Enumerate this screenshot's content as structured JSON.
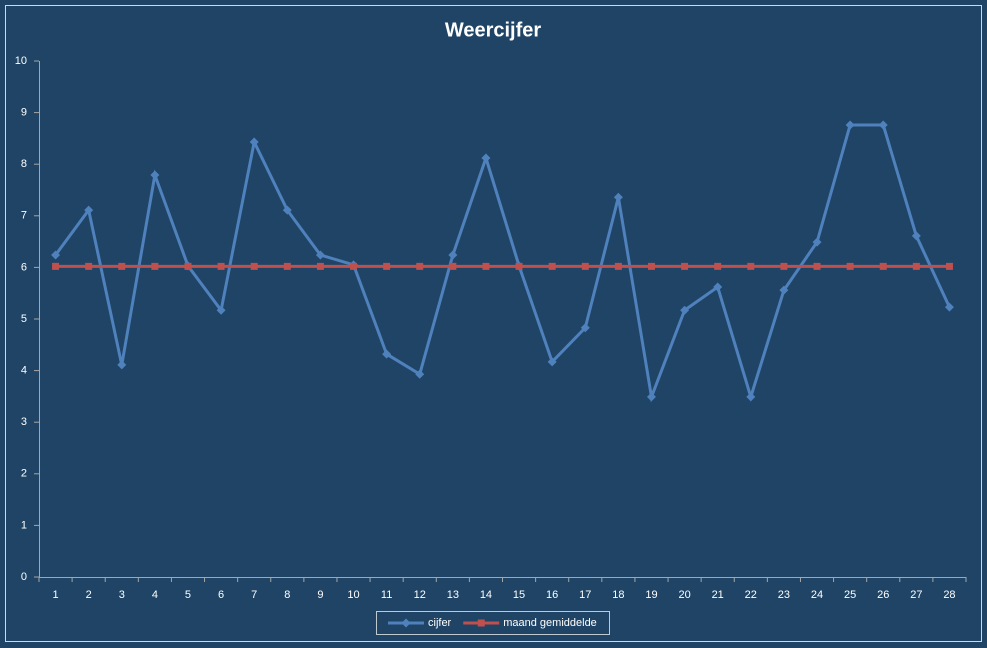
{
  "chart_data": {
    "type": "line",
    "title": "Weercijfer",
    "categories": [
      "1",
      "2",
      "3",
      "4",
      "5",
      "6",
      "7",
      "8",
      "9",
      "10",
      "11",
      "12",
      "13",
      "14",
      "15",
      "16",
      "17",
      "18",
      "19",
      "20",
      "21",
      "22",
      "23",
      "24",
      "25",
      "26",
      "27",
      "28"
    ],
    "series": [
      {
        "name": "cijfer",
        "color": "#4f81bd",
        "marker": "diamond",
        "values": [
          6.24,
          7.11,
          4.11,
          7.79,
          6.03,
          5.17,
          8.43,
          7.11,
          6.24,
          6.05,
          4.32,
          3.93,
          6.24,
          8.12,
          6.03,
          4.17,
          4.83,
          7.36,
          3.49,
          5.17,
          5.62,
          3.49,
          5.56,
          6.49,
          8.76,
          8.76,
          6.61,
          5.23
        ]
      },
      {
        "name": "maand gemiddelde",
        "color": "#c0504d",
        "marker": "square",
        "values": [
          6.02,
          6.02,
          6.02,
          6.02,
          6.02,
          6.02,
          6.02,
          6.02,
          6.02,
          6.02,
          6.02,
          6.02,
          6.02,
          6.02,
          6.02,
          6.02,
          6.02,
          6.02,
          6.02,
          6.02,
          6.02,
          6.02,
          6.02,
          6.02,
          6.02,
          6.02,
          6.02,
          6.02
        ]
      }
    ],
    "ylim": [
      0,
      10
    ],
    "yticks": [
      0,
      1,
      2,
      3,
      4,
      5,
      6,
      7,
      8,
      9,
      10
    ],
    "grid": false,
    "legend": "bottom"
  }
}
